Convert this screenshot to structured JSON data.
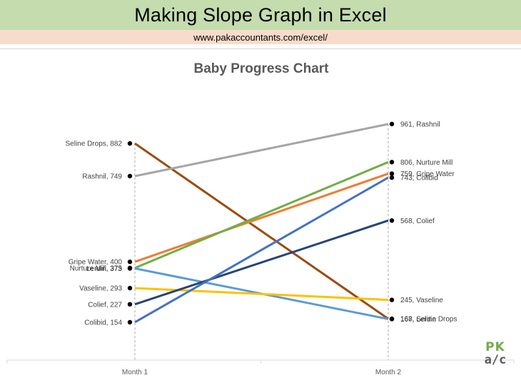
{
  "banner": {
    "title": "Making Slope Graph in Excel",
    "url": "www.pakaccountants.com/excel/"
  },
  "logo": {
    "top": "PK",
    "bottom": "a/c"
  },
  "chart_data": {
    "type": "line",
    "title": "Baby Progress Chart",
    "categories": [
      "Month 1",
      "Month 2"
    ],
    "ylim": [
      0,
      1170
    ],
    "grid": false,
    "legend": "none",
    "series": [
      {
        "name": "Seline Drops",
        "values": [
          882,
          168
        ],
        "color": "#9c4a0a",
        "labels": [
          "Seline Drops, 882",
          "168, Seline Drops"
        ]
      },
      {
        "name": "Rashnil",
        "values": [
          749,
          961
        ],
        "color": "#a5a5a5",
        "labels": [
          "Rashnil, 749",
          "961, Rashnil"
        ]
      },
      {
        "name": "Gripe Water",
        "values": [
          400,
          759
        ],
        "color": "#ed7d31",
        "labels": [
          "Gripe Water, 400",
          "759, Gripe Water"
        ]
      },
      {
        "name": "Nurture Mill",
        "values": [
          375,
          806
        ],
        "color": "#70ad47",
        "labels": [
          "Nurture Mill, 375",
          "806, Nurture Mill"
        ]
      },
      {
        "name": "Lerdin",
        "values": [
          373,
          167
        ],
        "color": "#5b9bd5",
        "labels": [
          "Lerdin, 373",
          "167, Lerdin"
        ]
      },
      {
        "name": "Vaseline",
        "values": [
          293,
          245
        ],
        "color": "#ffc000",
        "labels": [
          "Vaseline, 293",
          "245, Vaseline"
        ]
      },
      {
        "name": "Colief",
        "values": [
          227,
          568
        ],
        "color": "#264478",
        "labels": [
          "Colief, 227",
          "568, Colief"
        ]
      },
      {
        "name": "Colibid",
        "values": [
          154,
          743
        ],
        "color": "#4472c4",
        "labels": [
          "Colibid, 154",
          "743, Colibid"
        ]
      }
    ]
  }
}
